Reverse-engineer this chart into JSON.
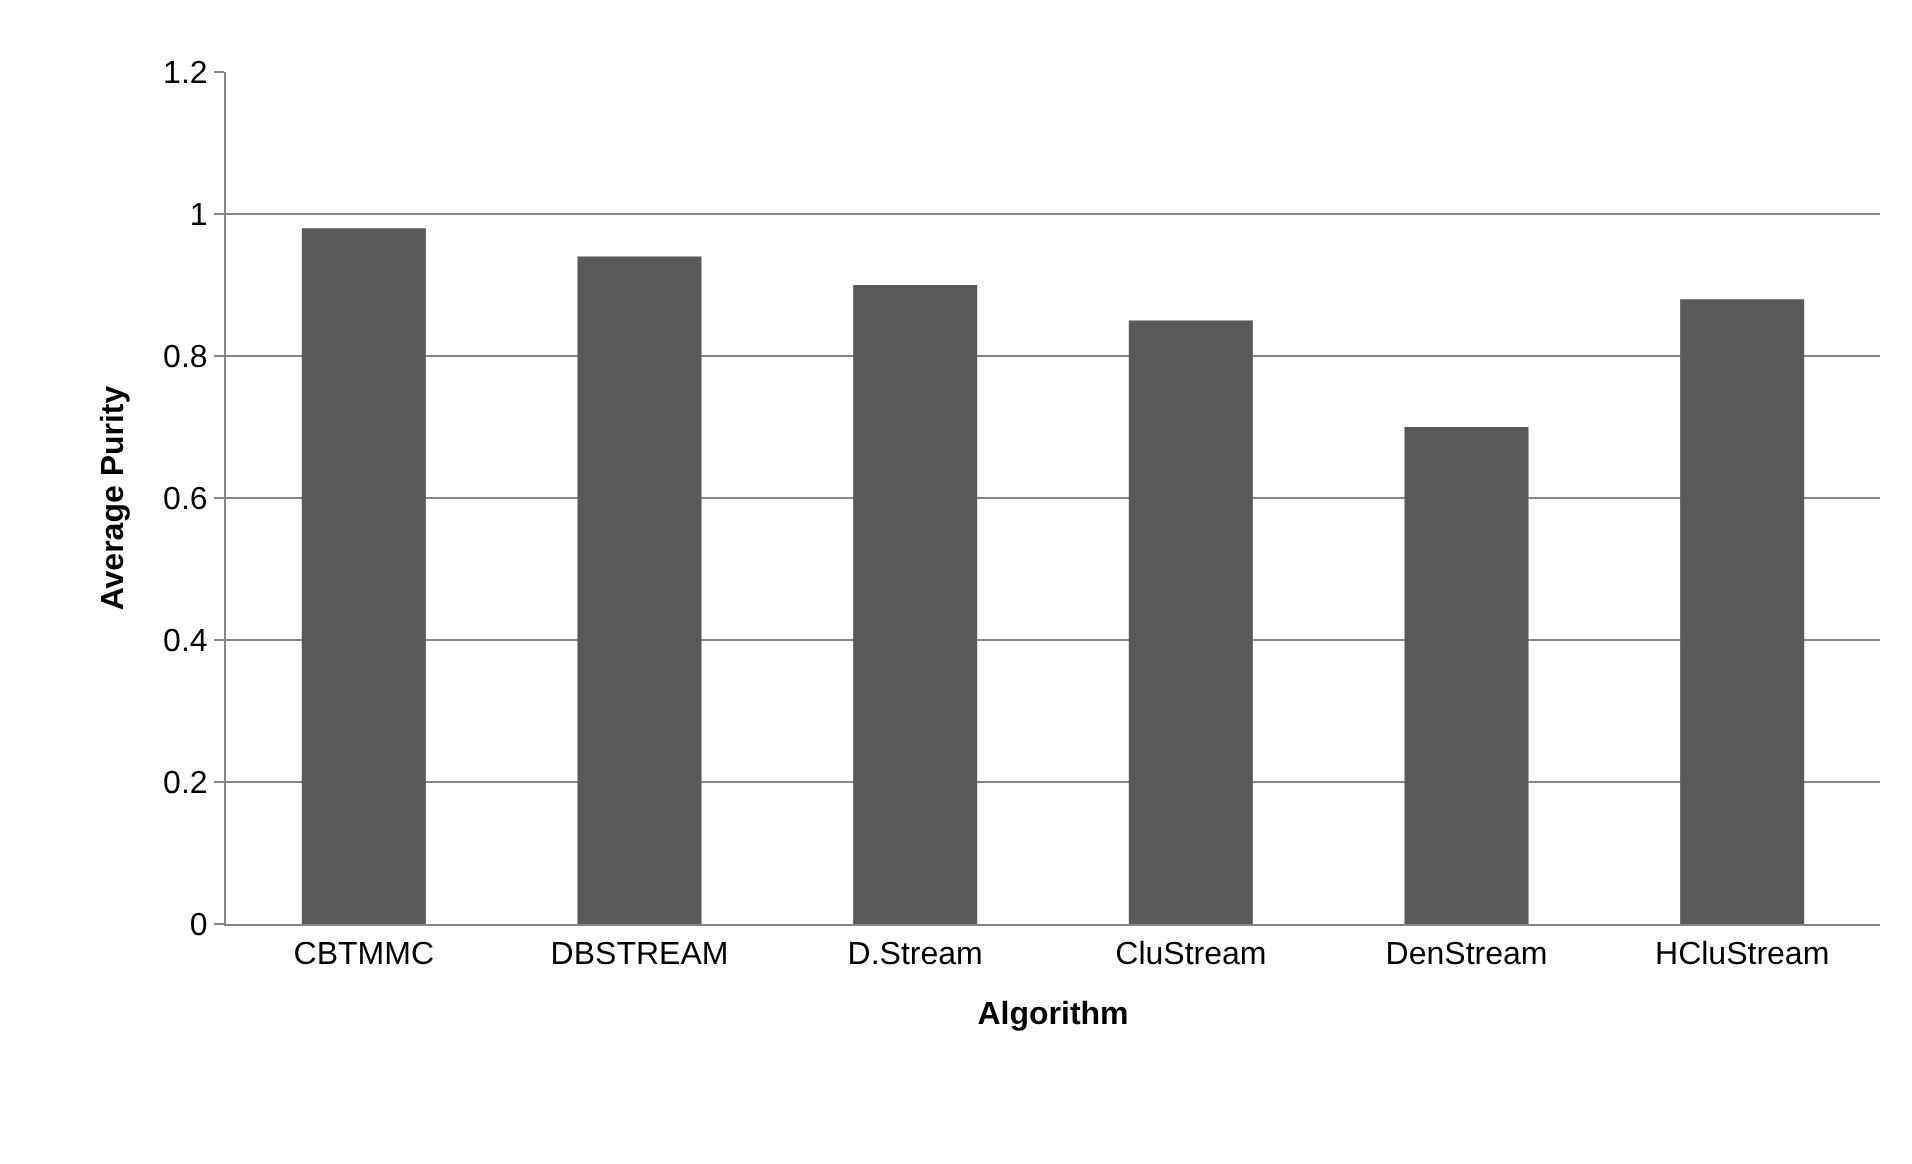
{
  "chart_data": {
    "type": "bar",
    "xlabel": "Algorithm",
    "ylabel": "Average Purity",
    "categories": [
      "CBTMMC",
      "DBSTREAM",
      "D.Stream",
      "CluStream",
      "DenStream",
      "HCluStream"
    ],
    "values": [
      0.98,
      0.94,
      0.9,
      0.85,
      0.7,
      0.88
    ],
    "color": "#595959",
    "ylim": [
      0,
      1.2
    ],
    "yticks": [
      0,
      {
        "value": 0.2,
        "label": "0.2"
      },
      {
        "value": 0.4,
        "label": "0.4"
      },
      {
        "value": 0.6,
        "label": "0.6"
      },
      {
        "value": 0.8,
        "label": "0.8"
      },
      1,
      {
        "value": 1.2,
        "label": "1.2"
      }
    ],
    "grid": "y"
  }
}
